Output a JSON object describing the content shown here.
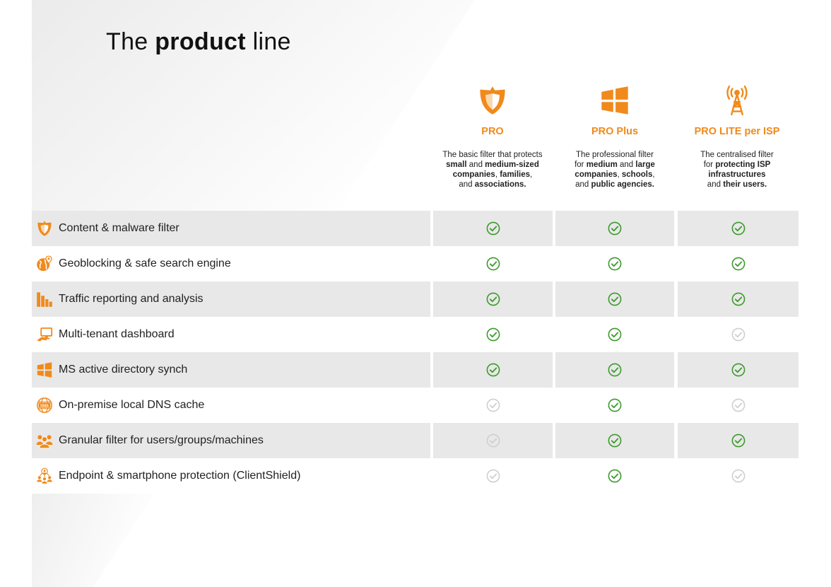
{
  "title": {
    "prefix": "The ",
    "bold": "product",
    "suffix": " line"
  },
  "colors": {
    "accent": "#f08a1c",
    "check_yes": "#3c9a2c",
    "check_no": "#cfcfcf",
    "row_shade": "#e8e8e8"
  },
  "products": [
    {
      "name": "PRO",
      "icon": "shield-icon",
      "desc_lines": [
        [
          {
            "t": "The basic filter that protects",
            "b": false
          }
        ],
        [
          {
            "t": "small",
            "b": true
          },
          {
            "t": " and ",
            "b": false
          },
          {
            "t": "medium-sized",
            "b": true
          }
        ],
        [
          {
            "t": "companies",
            "b": true
          },
          {
            "t": ", ",
            "b": false
          },
          {
            "t": "families",
            "b": true
          },
          {
            "t": ",",
            "b": false
          }
        ],
        [
          {
            "t": "and ",
            "b": false
          },
          {
            "t": "associations.",
            "b": true
          }
        ]
      ]
    },
    {
      "name": "PRO Plus",
      "icon": "windows-icon",
      "desc_lines": [
        [
          {
            "t": "The professional filter",
            "b": false
          }
        ],
        [
          {
            "t": "for ",
            "b": false
          },
          {
            "t": "medium",
            "b": true
          },
          {
            "t": " and ",
            "b": false
          },
          {
            "t": "large",
            "b": true
          }
        ],
        [
          {
            "t": "companies",
            "b": true
          },
          {
            "t": ", ",
            "b": false
          },
          {
            "t": "schools",
            "b": true
          },
          {
            "t": ",",
            "b": false
          }
        ],
        [
          {
            "t": "and ",
            "b": false
          },
          {
            "t": "public agencies.",
            "b": true
          }
        ]
      ]
    },
    {
      "name": "PRO LITE per ISP",
      "icon": "antenna-tower-icon",
      "desc_lines": [
        [
          {
            "t": "The centralised filter",
            "b": false
          }
        ],
        [
          {
            "t": "for ",
            "b": false
          },
          {
            "t": "protecting ISP",
            "b": true
          }
        ],
        [
          {
            "t": "infrastructures",
            "b": true
          }
        ],
        [
          {
            "t": "and ",
            "b": false
          },
          {
            "t": "their users.",
            "b": true
          }
        ]
      ]
    }
  ],
  "features": [
    {
      "label": "Content & malware filter",
      "icon": "shield-icon",
      "support": [
        true,
        true,
        true
      ]
    },
    {
      "label": "Geoblocking & safe search engine",
      "icon": "globe-pin-icon",
      "support": [
        true,
        true,
        true
      ]
    },
    {
      "label": "Traffic reporting and analysis",
      "icon": "bar-chart-icon",
      "support": [
        true,
        true,
        true
      ]
    },
    {
      "label": "Multi-tenant dashboard",
      "icon": "monitor-hand-icon",
      "support": [
        true,
        true,
        false
      ]
    },
    {
      "label": "MS active directory synch",
      "icon": "windows-icon",
      "support": [
        true,
        true,
        true
      ]
    },
    {
      "label": "On-premise local DNS cache",
      "icon": "dns-globe-icon",
      "support": [
        false,
        true,
        false
      ]
    },
    {
      "label": "Granular filter for users/groups/machines",
      "icon": "users-group-icon",
      "support": [
        false,
        true,
        true
      ]
    },
    {
      "label": "Endpoint & smartphone protection (ClientShield)",
      "icon": "network-users-icon",
      "support": [
        false,
        true,
        false
      ]
    }
  ]
}
